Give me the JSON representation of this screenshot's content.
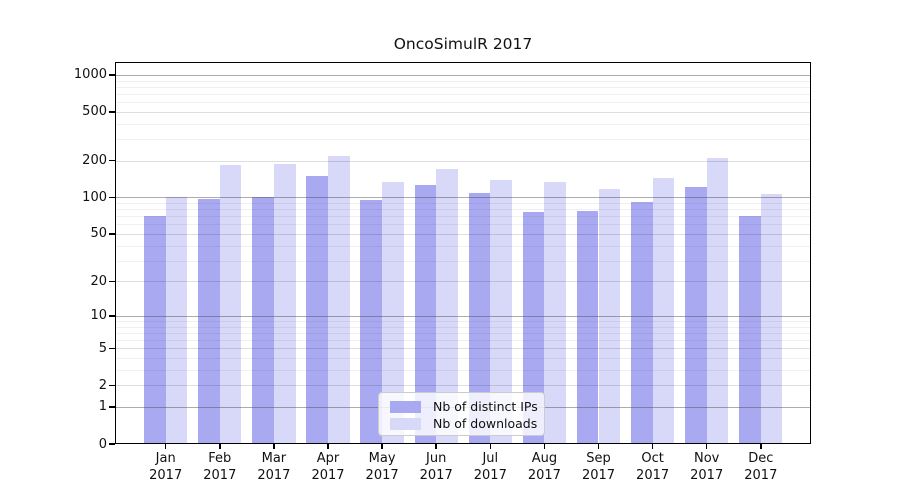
{
  "title": "OncoSimulR 2017",
  "chart_data": {
    "type": "bar",
    "title": "OncoSimulR 2017",
    "scale": "log10(value+1)",
    "year_label": "2017",
    "categories": [
      "Jan",
      "Feb",
      "Mar",
      "Apr",
      "May",
      "Jun",
      "Jul",
      "Aug",
      "Sep",
      "Oct",
      "Nov",
      "Dec"
    ],
    "series": [
      {
        "name": "Nb of distinct IPs",
        "color": "#a9a9f1",
        "values": [
          70,
          98,
          101,
          149,
          95,
          126,
          108,
          76,
          77,
          92,
          123,
          70
        ]
      },
      {
        "name": "Nb of downloads",
        "color": "#d8d8f8",
        "values": [
          100,
          186,
          189,
          220,
          135,
          170,
          139,
          134,
          117,
          145,
          209,
          107
        ]
      }
    ],
    "y_ticks": [
      1000,
      500,
      200,
      100,
      50,
      20,
      10,
      5,
      2,
      1,
      0
    ],
    "y_decade_lines": [
      1,
      10,
      100,
      1000
    ],
    "ylim": [
      0,
      1275
    ],
    "grid": true,
    "legend_position": "bottom-center"
  }
}
